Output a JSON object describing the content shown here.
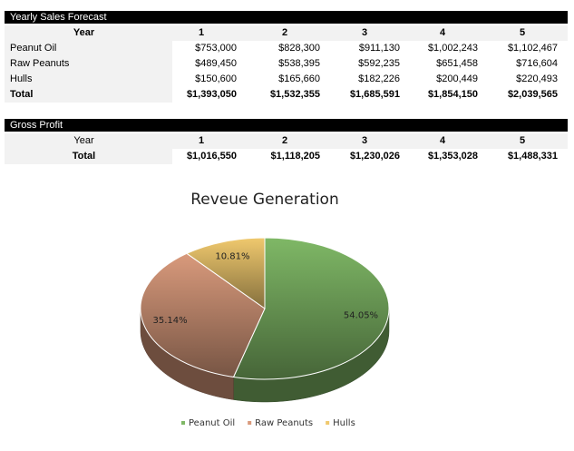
{
  "sales_table": {
    "title": "Yearly Sales Forecast",
    "header": [
      "Year",
      "1",
      "2",
      "3",
      "4",
      "5"
    ],
    "rows": [
      [
        "Peanut Oil",
        "$753,000",
        "$828,300",
        "$911,130",
        "$1,002,243",
        "$1,102,467"
      ],
      [
        "Raw Peanuts",
        "$489,450",
        "$538,395",
        "$592,235",
        "$651,458",
        "$716,604"
      ],
      [
        "Hulls",
        "$150,600",
        "$165,660",
        "$182,226",
        "$200,449",
        "$220,493"
      ],
      [
        "Total",
        "$1,393,050",
        "$1,532,355",
        "$1,685,591",
        "$1,854,150",
        "$2,039,565"
      ]
    ]
  },
  "profit_table": {
    "title": "Gross Profit",
    "header": [
      "Year",
      "1",
      "2",
      "3",
      "4",
      "5"
    ],
    "rows": [
      [
        "Total",
        "$1,016,550",
        "$1,118,205",
        "$1,230,026",
        "$1,353,028",
        "$1,488,331"
      ]
    ]
  },
  "chart_data": {
    "type": "pie",
    "title": "Reveue Generation",
    "categories": [
      "Peanut Oil",
      "Raw Peanuts",
      "Hulls"
    ],
    "values": [
      54.05,
      35.14,
      10.81
    ],
    "value_labels": [
      "54.05%",
      "35.14%",
      "10.81%"
    ],
    "colors": [
      "#7fb866",
      "#d99a7c",
      "#f0c96e"
    ],
    "legend": "bottom"
  }
}
